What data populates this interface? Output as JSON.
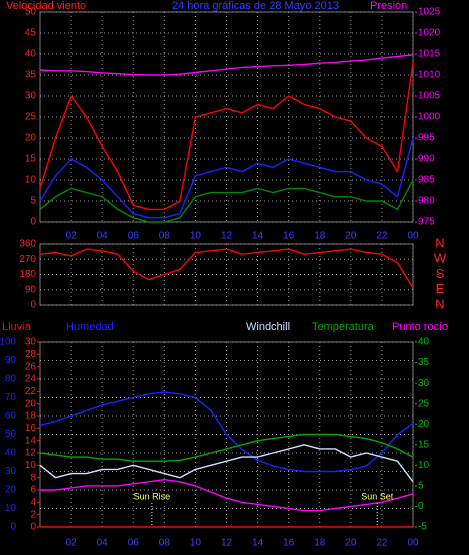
{
  "chart_data": [
    {
      "type": "line",
      "title": "24 hora gráficas de 28 Mayo 2013",
      "left_label": "Velocidad viento",
      "right_label": "Presión",
      "x": [
        0,
        1,
        2,
        3,
        4,
        5,
        6,
        7,
        8,
        9,
        10,
        11,
        12,
        13,
        14,
        15,
        16,
        17,
        18,
        19,
        20,
        21,
        22,
        23,
        24
      ],
      "xlim": [
        0,
        24
      ],
      "xticks": [
        {
          "value": 2,
          "label": "02"
        },
        {
          "value": 4,
          "label": "04"
        },
        {
          "value": 6,
          "label": "06"
        },
        {
          "value": 8,
          "label": "08"
        },
        10,
        12,
        14,
        16,
        18,
        20,
        22,
        {
          "value": 24,
          "label": "00"
        }
      ],
      "ylim": [
        0,
        50
      ],
      "yticks": [
        0,
        5,
        10,
        15,
        20,
        25,
        30,
        35,
        40,
        45,
        50
      ],
      "y2lim": [
        975,
        1025
      ],
      "y2ticks": [
        975,
        980,
        985,
        990,
        995,
        1000,
        1005,
        1010,
        1015,
        1020,
        1025
      ],
      "ycolor": "#ff2020",
      "y2color": "#ff00ff",
      "xcolor": "#3040ff",
      "title_color": "#3040ff",
      "grid": true,
      "series": [
        {
          "color": "#ff0000",
          "values": [
            8,
            20,
            30,
            25,
            18,
            12,
            4,
            3,
            3,
            5,
            25,
            26,
            27,
            26,
            28,
            27,
            30,
            28,
            27,
            25,
            24,
            20,
            18,
            12,
            38
          ]
        },
        {
          "color": "#2020ff",
          "values": [
            5,
            11,
            15,
            13,
            10,
            6,
            2,
            1,
            1,
            2,
            11,
            12,
            13,
            12,
            14,
            13,
            15,
            14,
            13,
            12,
            12,
            10,
            9,
            6,
            20
          ]
        },
        {
          "color": "#008800",
          "values": [
            3,
            6,
            8,
            7,
            6,
            3,
            1,
            0,
            0,
            1,
            6,
            7,
            7,
            7,
            8,
            7,
            8,
            8,
            7,
            6,
            6,
            5,
            5,
            3,
            10
          ]
        },
        {
          "color": "#ff00ff",
          "axis": "y2",
          "values": [
            1011.2,
            1011,
            1011,
            1010.8,
            1010.5,
            1010.3,
            1010.1,
            1010,
            1010,
            1010.2,
            1010.6,
            1011,
            1011.4,
            1011.8,
            1012,
            1012.2,
            1012.3,
            1012.5,
            1012.8,
            1013,
            1013.3,
            1013.6,
            1014,
            1014.4,
            1014.8
          ]
        }
      ]
    },
    {
      "type": "line",
      "x": [
        0,
        1,
        2,
        3,
        4,
        5,
        6,
        7,
        8,
        9,
        10,
        11,
        12,
        13,
        14,
        15,
        16,
        17,
        18,
        19,
        20,
        21,
        22,
        23,
        24
      ],
      "xlim": [
        0,
        24
      ],
      "xticks": [
        2,
        4,
        6,
        8,
        10,
        12,
        14,
        16,
        18,
        20,
        22,
        24
      ],
      "ylim": [
        0,
        360
      ],
      "yticks": [
        0,
        90,
        180,
        270,
        360
      ],
      "y2lim": [
        0,
        360
      ],
      "y2ticks": [
        {
          "value": 0,
          "label": "N"
        },
        {
          "value": 90,
          "label": "E"
        },
        {
          "value": 180,
          "label": "S"
        },
        {
          "value": 270,
          "label": "W"
        },
        {
          "value": 360,
          "label": "N"
        }
      ],
      "ycolor": "#ff2020",
      "y2color": "#ff2020",
      "grid": true,
      "series": [
        {
          "color": "#ff0000",
          "values": [
            300,
            310,
            290,
            330,
            320,
            300,
            200,
            150,
            180,
            210,
            310,
            320,
            330,
            300,
            310,
            320,
            330,
            300,
            310,
            320,
            330,
            310,
            300,
            250,
            100
          ]
        }
      ]
    },
    {
      "type": "line",
      "x": [
        0,
        1,
        2,
        3,
        4,
        5,
        6,
        7,
        8,
        9,
        10,
        11,
        12,
        13,
        14,
        15,
        16,
        17,
        18,
        19,
        20,
        21,
        22,
        23,
        24
      ],
      "xlim": [
        0,
        24
      ],
      "xticks": [
        {
          "value": 2,
          "label": "02"
        },
        {
          "value": 4,
          "label": "04"
        },
        {
          "value": 6,
          "label": "06"
        },
        {
          "value": 8,
          "label": "08"
        },
        10,
        12,
        14,
        16,
        18,
        20,
        22,
        {
          "value": 24,
          "label": "00"
        }
      ],
      "ylim": [
        0,
        100
      ],
      "yticks": [
        0,
        10,
        20,
        30,
        40,
        50,
        60,
        70,
        80,
        90,
        100
      ],
      "y3lim": [
        0,
        30
      ],
      "y3ticks": [
        0,
        2,
        4,
        6,
        8,
        10,
        12,
        14,
        16,
        18,
        20,
        22,
        24,
        26,
        28,
        30
      ],
      "y2lim": [
        -5,
        40
      ],
      "y2ticks": [
        -5,
        0,
        5,
        10,
        15,
        20,
        25,
        30,
        35,
        40
      ],
      "ycolor": "#2020ff",
      "y3color": "#ff2020",
      "y2color": "#00bb00",
      "xcolor": "#3040ff",
      "grid": true,
      "annotations": [
        {
          "text": "Sun Rise",
          "x": 7.2
        },
        {
          "text": "Sun Set",
          "x": 21.7
        }
      ],
      "series": [
        {
          "name": "Lluvia",
          "color": "#ff0000",
          "axis": "y3",
          "values": [
            0,
            0,
            0,
            0,
            0,
            0,
            0,
            0,
            0,
            0,
            0,
            0,
            0,
            0,
            0,
            0,
            0,
            0,
            0,
            0,
            0,
            0,
            0,
            0,
            0
          ]
        },
        {
          "name": "Humedad",
          "color": "#2020ff",
          "values": [
            55,
            57,
            60,
            63,
            66,
            68,
            70,
            72,
            73,
            72,
            70,
            63,
            50,
            42,
            36,
            33,
            31,
            30,
            30,
            30,
            31,
            33,
            40,
            50,
            56
          ]
        },
        {
          "name": "Windchill",
          "color": "#cfe0ff",
          "axis": "y2",
          "values": [
            10,
            7,
            8,
            8,
            9,
            9,
            10,
            9,
            8,
            7,
            9,
            10,
            11,
            12,
            12,
            13,
            14,
            15,
            14,
            14,
            12,
            13,
            12,
            11,
            6
          ]
        },
        {
          "name": "Temperatura",
          "color": "#00aa00",
          "axis": "y2",
          "values": [
            13,
            12.5,
            12,
            12,
            11.5,
            11.5,
            11,
            11,
            11,
            11.2,
            12,
            13,
            14,
            15,
            16,
            16.5,
            17,
            17.5,
            17.5,
            17.5,
            17,
            16.5,
            15.5,
            14,
            12
          ]
        },
        {
          "name": "Punto rocío",
          "color": "#ff00ff",
          "axis": "y2",
          "values": [
            4,
            4,
            4.5,
            5,
            5,
            5,
            5.5,
            6,
            6.5,
            6,
            5,
            3.5,
            2,
            1,
            0.5,
            0,
            -0.5,
            -1,
            -1,
            -0.5,
            0,
            0.5,
            1,
            2,
            3
          ]
        }
      ]
    }
  ]
}
